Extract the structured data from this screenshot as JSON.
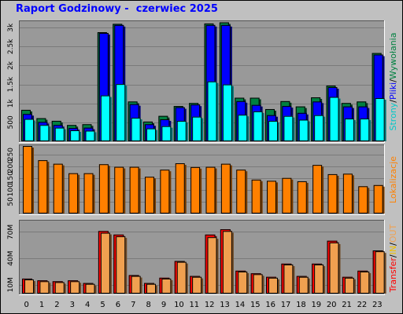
{
  "title": "Raport Godzinowy -  czerwiec 2025",
  "hours": [
    "0",
    "1",
    "2",
    "3",
    "4",
    "5",
    "6",
    "7",
    "8",
    "9",
    "10",
    "11",
    "12",
    "13",
    "14",
    "15",
    "16",
    "17",
    "18",
    "19",
    "20",
    "21",
    "22",
    "23"
  ],
  "colors": {
    "frame_bg": "#c0c0c0",
    "plot_bg": "#999999",
    "hits": "#008040",
    "files": "#0000ff",
    "pages": "#00ffff",
    "sites": "#ff8000",
    "kbytes_in": "#ff0000",
    "kbytes_out": "#f0a050",
    "title": "#0000ff"
  },
  "right_labels": {
    "top": [
      {
        "text": "Strony",
        "color": "#00c8c8"
      },
      {
        "text": "/",
        "color": "#000000"
      },
      {
        "text": "Pliki",
        "color": "#0000ff"
      },
      {
        "text": "/",
        "color": "#000000"
      },
      {
        "text": "Wywołania",
        "color": "#008040"
      }
    ],
    "middle": [
      {
        "text": "Lokalizacje",
        "color": "#ff8000"
      }
    ],
    "bottom": [
      {
        "text": "Transfer",
        "color": "#ff0000"
      },
      {
        "text": "/",
        "color": "#000000"
      },
      {
        "text": "IN",
        "color": "#f0c000"
      },
      {
        "text": "/",
        "color": "#000000"
      },
      {
        "text": "OUT",
        "color": "#f0a050"
      }
    ]
  },
  "chart_data": [
    {
      "type": "bar",
      "name": "requests",
      "categories": [
        "0",
        "1",
        "2",
        "3",
        "4",
        "5",
        "6",
        "7",
        "8",
        "9",
        "10",
        "11",
        "12",
        "13",
        "14",
        "15",
        "16",
        "17",
        "18",
        "19",
        "20",
        "21",
        "22",
        "23"
      ],
      "ylim": [
        0,
        3150
      ],
      "yticks": [
        500,
        1000,
        1500,
        2000,
        2500,
        3000
      ],
      "ytick_labels": [
        "500",
        "1k",
        "1.5k",
        "2k",
        "2.5k",
        "3k"
      ],
      "series": [
        {
          "name": "Wywołania",
          "values": [
            830,
            610,
            540,
            430,
            450,
            2880,
            3100,
            1050,
            520,
            670,
            930,
            1010,
            3110,
            3140,
            1150,
            1150,
            850,
            1060,
            920,
            1160,
            1470,
            1010,
            1050,
            2330
          ]
        },
        {
          "name": "Pliki",
          "values": [
            720,
            510,
            430,
            350,
            360,
            2860,
            3070,
            980,
            450,
            580,
            900,
            970,
            3070,
            3070,
            1060,
            960,
            690,
            930,
            750,
            1050,
            1430,
            920,
            920,
            2290
          ]
        },
        {
          "name": "Strony",
          "values": [
            590,
            430,
            360,
            290,
            280,
            1210,
            1510,
            620,
            340,
            400,
            540,
            650,
            1580,
            1500,
            700,
            790,
            540,
            670,
            570,
            690,
            1170,
            600,
            600,
            1140
          ]
        }
      ]
    },
    {
      "type": "bar",
      "name": "locations",
      "categories": [
        "0",
        "1",
        "2",
        "3",
        "4",
        "5",
        "6",
        "7",
        "8",
        "9",
        "10",
        "11",
        "12",
        "13",
        "14",
        "15",
        "16",
        "17",
        "18",
        "19",
        "20",
        "21",
        "22",
        "23"
      ],
      "ylim": [
        0,
        285
      ],
      "yticks": [
        50,
        100,
        150,
        200,
        250
      ],
      "ytick_labels": [
        "50",
        "100",
        "150",
        "200",
        "250"
      ],
      "series": [
        {
          "name": "Lokalizacje",
          "values": [
            285,
            225,
            210,
            170,
            170,
            208,
            197,
            197,
            155,
            185,
            212,
            196,
            197,
            210,
            185,
            143,
            138,
            150,
            136,
            205,
            166,
            168,
            115,
            120
          ]
        }
      ]
    },
    {
      "type": "bar",
      "name": "transfer",
      "categories": [
        "0",
        "1",
        "2",
        "3",
        "4",
        "5",
        "6",
        "7",
        "8",
        "9",
        "10",
        "11",
        "12",
        "13",
        "14",
        "15",
        "16",
        "17",
        "18",
        "19",
        "20",
        "21",
        "22",
        "23"
      ],
      "ylim": [
        0,
        82
      ],
      "yticks": [
        10,
        40,
        70
      ],
      "ytick_labels": [
        "10M",
        "40M",
        "70M"
      ],
      "series": [
        {
          "name": "IN",
          "values": [
            17,
            15,
            14,
            15,
            12,
            71,
            67,
            21,
            12,
            18,
            37,
            20,
            67,
            73,
            26,
            23,
            19,
            34,
            20,
            34,
            60,
            19,
            26,
            49
          ]
        },
        {
          "name": "OUT",
          "values": [
            16,
            14,
            13,
            14,
            11,
            69,
            65,
            20,
            11,
            17,
            36,
            19,
            64,
            71,
            25,
            22,
            18,
            33,
            19,
            33,
            58,
            18,
            25,
            48
          ]
        }
      ]
    }
  ]
}
